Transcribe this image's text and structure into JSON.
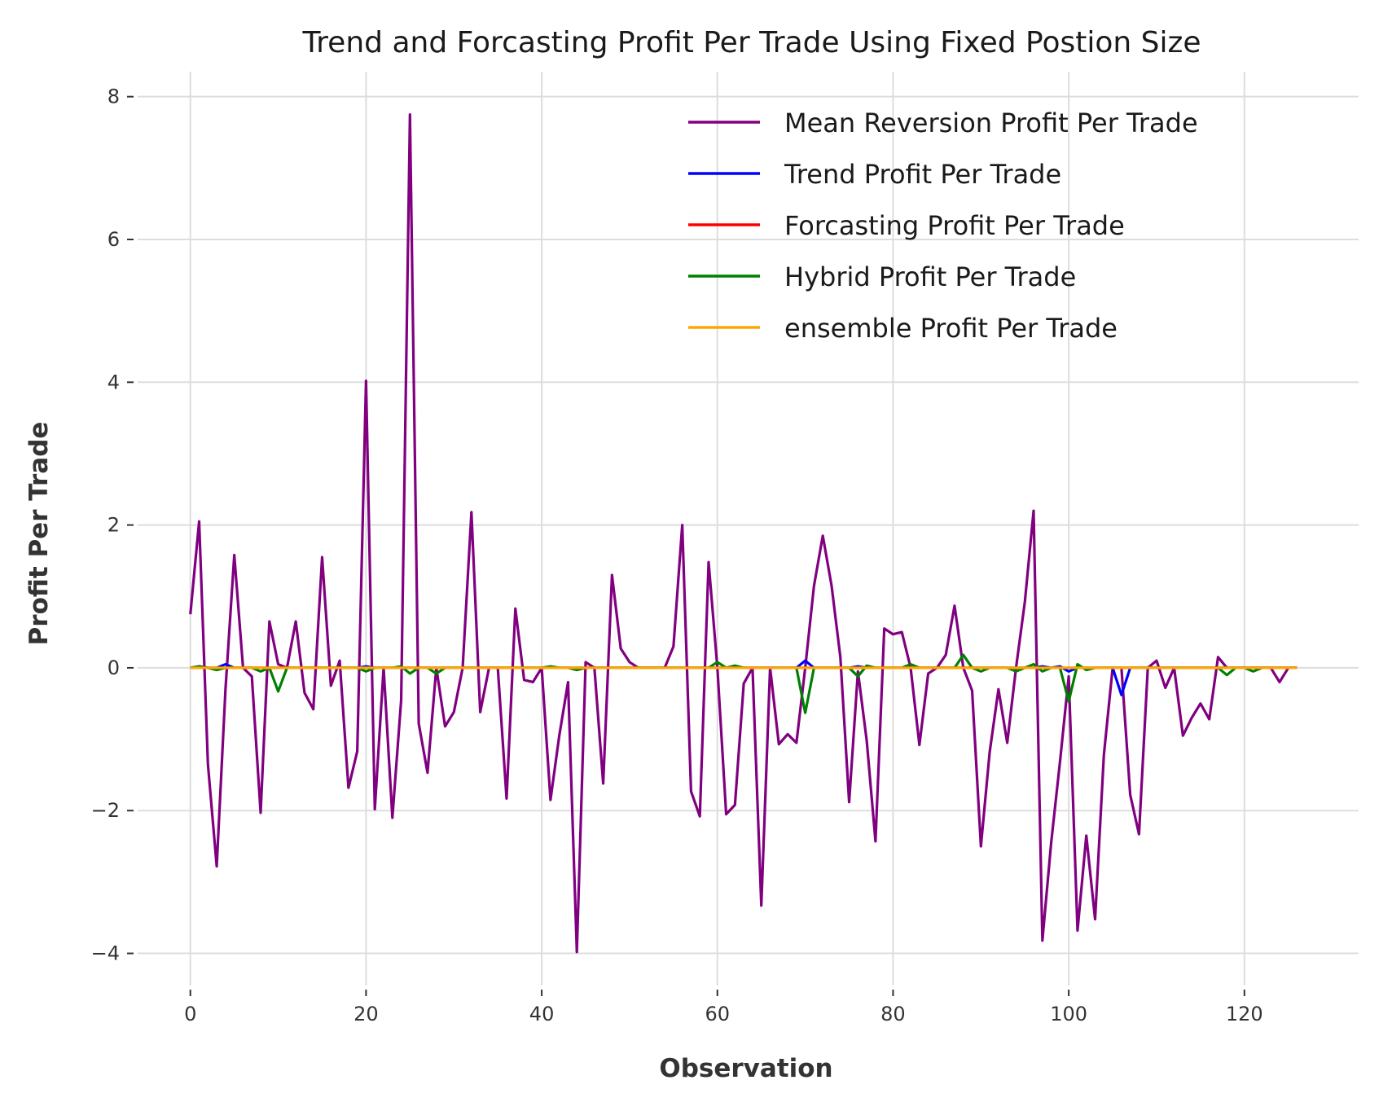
{
  "chart_data": {
    "type": "line",
    "title": "Trend and Forcasting Profit Per Trade Using Fixed Postion Size",
    "xlabel": "Observation",
    "ylabel": "Profit Per Trade",
    "xlim": [
      -6,
      133
    ],
    "ylim": [
      -4.45,
      8.35
    ],
    "xticks": [
      0,
      20,
      40,
      60,
      80,
      100,
      120
    ],
    "yticks": [
      -4,
      -2,
      0,
      2,
      4,
      6,
      8
    ],
    "xtick_labels": [
      "0",
      "20",
      "40",
      "60",
      "80",
      "100",
      "120"
    ],
    "ytick_labels": [
      "−4",
      "−2",
      "0",
      "2",
      "4",
      "6",
      "8"
    ],
    "grid": true,
    "legend_position": "top-right",
    "series": [
      {
        "name": "Mean Reversion Profit Per Trade",
        "color": "#800080",
        "values": [
          0.75,
          2.05,
          -1.35,
          -2.78,
          -0.3,
          1.58,
          0.0,
          -0.12,
          -2.03,
          0.65,
          0.05,
          0.0,
          0.65,
          -0.35,
          -0.58,
          1.55,
          -0.25,
          0.1,
          -1.68,
          -1.17,
          4.02,
          -1.98,
          0.0,
          -2.1,
          -0.45,
          7.75,
          -0.78,
          -1.47,
          0.0,
          -0.82,
          -0.62,
          0.0,
          2.18,
          -0.62,
          0.0,
          0.0,
          -1.83,
          0.83,
          -0.17,
          -0.2,
          0.0,
          -1.85,
          -0.95,
          -0.2,
          -3.98,
          0.08,
          0.0,
          -1.62,
          1.3,
          0.27,
          0.08,
          0.0,
          0.0,
          0.0,
          0.0,
          0.3,
          2.0,
          -1.73,
          -2.08,
          1.48,
          0.0,
          -2.05,
          -1.92,
          -0.22,
          0.0,
          -3.33,
          0.0,
          -1.07,
          -0.93,
          -1.05,
          0.0,
          1.15,
          1.85,
          1.15,
          0.15,
          -1.88,
          -0.05,
          -1.02,
          -2.43,
          0.55,
          0.47,
          0.5,
          0.0,
          -1.08,
          -0.08,
          0.0,
          0.18,
          0.87,
          0.0,
          -0.32,
          -2.5,
          -1.18,
          -0.3,
          -1.05,
          0.0,
          0.92,
          2.2,
          -3.82,
          -2.45,
          -1.32,
          -0.12,
          -3.68,
          -2.35,
          -3.52,
          -1.22,
          0.0,
          0.0,
          -1.78,
          -2.33,
          0.0,
          0.1,
          -0.28,
          0.0,
          -0.95,
          -0.7,
          -0.5,
          -0.72,
          0.15,
          0.0,
          0.0,
          0.0,
          0.0,
          0.0,
          0.0,
          -0.2,
          0.0,
          0.0
        ]
      },
      {
        "name": "Trend Profit Per Trade",
        "color": "#0000ff",
        "values": [
          0.0,
          0.02,
          0.0,
          0.0,
          0.05,
          0.0,
          0.0,
          0.0,
          0.0,
          0.0,
          0.0,
          0.0,
          0.0,
          0.0,
          0.0,
          0.0,
          0.0,
          0.0,
          0.0,
          0.0,
          0.02,
          0.0,
          0.0,
          0.0,
          0.0,
          0.0,
          0.0,
          0.0,
          0.0,
          0.0,
          0.0,
          0.0,
          0.0,
          0.0,
          0.0,
          0.0,
          0.0,
          0.0,
          0.0,
          0.0,
          0.0,
          0.0,
          0.0,
          0.0,
          0.0,
          0.0,
          0.0,
          0.0,
          0.0,
          0.0,
          0.0,
          0.0,
          0.0,
          0.0,
          0.0,
          0.0,
          0.0,
          0.0,
          0.0,
          0.0,
          0.0,
          0.0,
          0.0,
          0.0,
          0.0,
          0.0,
          0.0,
          0.0,
          0.0,
          0.0,
          0.1,
          0.0,
          0.0,
          0.0,
          0.0,
          0.0,
          0.02,
          0.0,
          0.0,
          0.0,
          0.0,
          0.0,
          0.0,
          0.0,
          0.0,
          0.0,
          0.0,
          0.0,
          0.0,
          0.0,
          0.0,
          0.0,
          0.0,
          0.0,
          0.0,
          0.0,
          0.0,
          0.02,
          0.0,
          0.02,
          -0.05,
          0.0,
          0.0,
          0.0,
          0.0,
          0.0,
          -0.38,
          0.0,
          0.0,
          0.0,
          0.0,
          0.0,
          0.0,
          0.0,
          0.0,
          0.0,
          0.0,
          0.0,
          0.0,
          0.0,
          0.0,
          0.0,
          0.0,
          0.0,
          0.0,
          0.0,
          0.0
        ]
      },
      {
        "name": "Forcasting Profit Per Trade",
        "color": "#ff0000",
        "values": [
          0.0,
          0.0,
          0.0,
          0.0,
          0.0,
          0.0,
          0.0,
          0.0,
          0.0,
          0.0,
          0.0,
          0.0,
          0.0,
          0.0,
          0.0,
          0.0,
          0.0,
          0.0,
          0.0,
          0.0,
          0.0,
          0.0,
          0.0,
          0.0,
          0.0,
          0.0,
          0.0,
          0.0,
          0.0,
          0.0,
          0.0,
          0.0,
          0.0,
          0.0,
          0.0,
          0.0,
          0.0,
          0.0,
          0.0,
          0.0,
          0.0,
          0.0,
          0.0,
          0.0,
          0.0,
          0.0,
          0.0,
          0.0,
          0.0,
          0.0,
          0.0,
          0.0,
          0.0,
          0.0,
          0.0,
          0.0,
          0.0,
          0.0,
          0.0,
          0.0,
          0.0,
          0.0,
          0.0,
          0.0,
          0.0,
          0.0,
          0.0,
          0.0,
          0.0,
          0.0,
          0.0,
          0.0,
          0.0,
          0.0,
          0.0,
          0.0,
          0.0,
          0.0,
          0.0,
          0.0,
          0.0,
          0.0,
          0.0,
          0.0,
          0.0,
          0.0,
          0.0,
          0.0,
          0.0,
          0.0,
          0.0,
          0.0,
          0.0,
          0.0,
          0.0,
          0.0,
          0.0,
          0.0,
          0.0,
          0.0,
          0.0,
          0.0,
          0.0,
          0.0,
          0.0,
          0.0,
          0.0,
          0.0,
          0.0,
          0.0,
          0.0,
          0.0,
          0.0,
          0.0,
          0.0,
          0.0,
          0.0,
          0.0,
          0.0,
          0.0,
          0.0,
          0.0,
          0.0,
          0.0,
          0.0,
          0.0,
          0.0
        ]
      },
      {
        "name": "Hybrid Profit Per Trade",
        "color": "#008000",
        "values": [
          0.0,
          0.02,
          0.0,
          -0.03,
          0.0,
          0.0,
          0.0,
          0.0,
          -0.05,
          0.0,
          -0.33,
          0.0,
          0.0,
          0.0,
          0.0,
          0.0,
          0.0,
          0.0,
          0.0,
          0.0,
          -0.05,
          0.0,
          0.0,
          0.0,
          0.02,
          -0.08,
          0.0,
          0.0,
          -0.08,
          0.0,
          0.0,
          0.0,
          0.0,
          0.0,
          0.0,
          0.0,
          0.0,
          0.0,
          0.0,
          0.0,
          0.0,
          0.02,
          0.0,
          0.0,
          -0.03,
          0.0,
          0.0,
          0.0,
          0.0,
          0.0,
          0.0,
          0.0,
          0.0,
          0.0,
          0.0,
          0.0,
          0.0,
          0.0,
          0.0,
          0.0,
          0.08,
          0.0,
          0.03,
          0.0,
          0.0,
          0.0,
          0.0,
          0.0,
          0.0,
          0.0,
          -0.63,
          0.0,
          0.0,
          0.0,
          0.0,
          0.0,
          -0.12,
          0.03,
          0.0,
          0.0,
          0.0,
          0.0,
          0.05,
          0.0,
          0.0,
          0.0,
          0.0,
          0.0,
          0.18,
          0.0,
          -0.05,
          0.0,
          0.0,
          0.0,
          -0.05,
          0.0,
          0.05,
          -0.05,
          0.0,
          0.0,
          -0.47,
          0.05,
          -0.03,
          0.0,
          0.0,
          0.0,
          0.0,
          0.0,
          0.0,
          0.0,
          0.0,
          0.0,
          0.0,
          0.0,
          0.0,
          0.0,
          0.0,
          0.0,
          -0.1,
          0.0,
          0.0,
          -0.05,
          0.0,
          0.0,
          0.0,
          0.0,
          0.0
        ]
      },
      {
        "name": "ensemble Profit Per Trade",
        "color": "#ffa500",
        "values": [
          0.0,
          0.0,
          0.0,
          0.0,
          0.0,
          0.0,
          0.0,
          0.0,
          0.0,
          0.0,
          0.0,
          0.0,
          0.0,
          0.0,
          0.0,
          0.0,
          0.0,
          0.0,
          0.0,
          0.0,
          0.0,
          0.0,
          0.0,
          0.0,
          0.0,
          0.0,
          0.0,
          0.0,
          0.0,
          0.0,
          0.0,
          0.0,
          0.0,
          0.0,
          0.0,
          0.0,
          0.0,
          0.0,
          0.0,
          0.0,
          0.0,
          0.0,
          0.0,
          0.0,
          0.0,
          0.0,
          0.0,
          0.0,
          0.0,
          0.0,
          0.0,
          0.0,
          0.0,
          0.0,
          0.0,
          0.0,
          0.0,
          0.0,
          0.0,
          0.0,
          0.0,
          0.0,
          0.0,
          0.0,
          0.0,
          0.0,
          0.0,
          0.0,
          0.0,
          0.0,
          0.0,
          0.0,
          0.0,
          0.0,
          0.0,
          0.0,
          0.0,
          0.0,
          0.0,
          0.0,
          0.0,
          0.0,
          0.0,
          0.0,
          0.0,
          0.0,
          0.0,
          0.0,
          0.0,
          0.0,
          0.0,
          0.0,
          0.0,
          0.0,
          0.0,
          0.0,
          0.0,
          0.0,
          0.0,
          0.0,
          0.0,
          0.0,
          0.0,
          0.0,
          0.0,
          0.0,
          0.0,
          0.0,
          0.0,
          0.0,
          0.0,
          0.0,
          0.0,
          0.0,
          0.0,
          0.0,
          0.0,
          0.0,
          0.0,
          0.0,
          0.0,
          0.0,
          0.0,
          0.0,
          0.0,
          0.0,
          0.0
        ]
      }
    ]
  }
}
